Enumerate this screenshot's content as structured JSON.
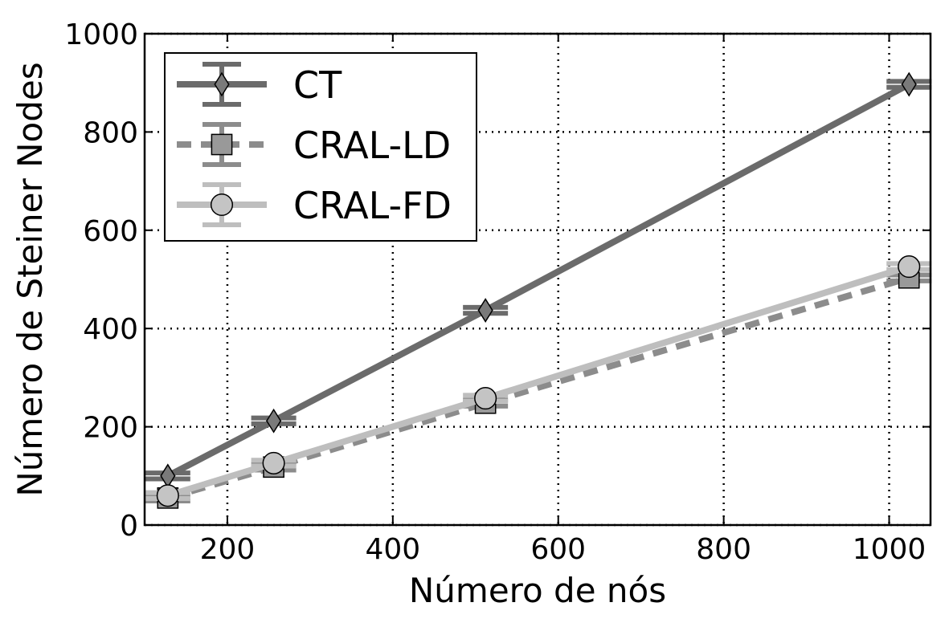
{
  "chart_data": {
    "type": "line",
    "title": "",
    "xlabel": "Número de nós",
    "ylabel": "Número de Steiner Nodes",
    "xlim": [
      100,
      1050
    ],
    "ylim": [
      0,
      1000
    ],
    "xticks": [
      200,
      400,
      600,
      800,
      1000
    ],
    "yticks": [
      0,
      200,
      400,
      600,
      800,
      1000
    ],
    "x": [
      128,
      256,
      512,
      1024
    ],
    "grid": true,
    "legend_position": "top-left",
    "series": [
      {
        "name": "CT",
        "values": [
          100,
          212,
          437,
          897
        ],
        "error": [
          6,
          6,
          6,
          6
        ],
        "color": "#6b6b6b",
        "line_style": "solid",
        "marker": "diamond",
        "marker_color": "#7a7a7a"
      },
      {
        "name": "CRAL-LD",
        "values": [
          55,
          118,
          248,
          503
        ],
        "error": [
          6,
          6,
          6,
          6
        ],
        "color": "#8c8c8c",
        "line_style": "dashed",
        "marker": "square",
        "marker_color": "#999999"
      },
      {
        "name": "CRAL-FD",
        "values": [
          60,
          126,
          258,
          526
        ],
        "error": [
          6,
          6,
          6,
          6
        ],
        "color": "#bebebe",
        "line_style": "solid",
        "marker": "circle",
        "marker_color": "#c4c4c4"
      }
    ]
  }
}
